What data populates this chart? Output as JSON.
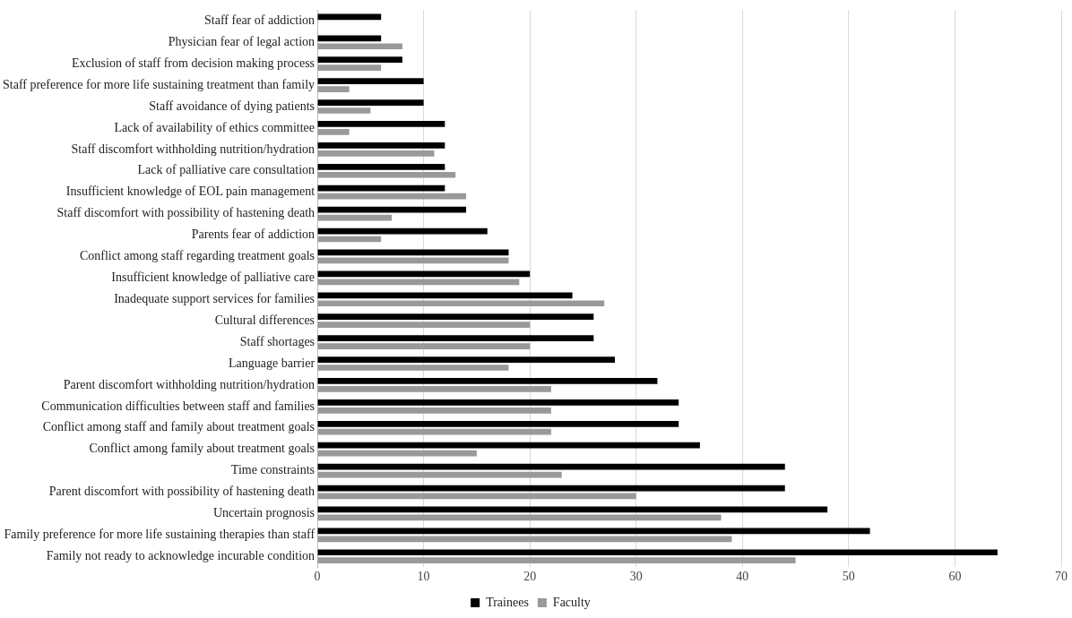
{
  "chart_data": {
    "type": "bar",
    "orientation": "horizontal",
    "categories": [
      "Staff fear of addiction",
      "Physician fear of legal action",
      "Exclusion of staff from decision making process",
      "Staff preference for more life sustaining treatment than family",
      "Staff avoidance of dying patients",
      "Lack of availability of ethics committee",
      "Staff discomfort withholding nutrition/hydration",
      "Lack of palliative care consultation",
      "Insufficient knowledge of EOL pain management",
      "Staff discomfort with possibility of hastening death",
      "Parents fear of addiction",
      "Conflict among staff regarding treatment goals",
      "Insufficient knowledge of palliative care",
      "Inadequate support services for families",
      "Cultural differences",
      "Staff shortages",
      "Language barrier",
      "Parent discomfort withholding nutrition/hydration",
      "Communication difficulties between staff and families",
      "Conflict among staff and family about treatment goals",
      "Conflict among family about treatment goals",
      "Time constraints",
      "Parent discomfort with possibility of hastening death",
      "Uncertain prognosis",
      "Family preference for more life sustaining therapies than staff",
      "Family not ready to acknowledge incurable condition"
    ],
    "series": [
      {
        "name": "Trainees",
        "color": "#000000",
        "values": [
          6,
          6,
          8,
          10,
          10,
          12,
          12,
          12,
          12,
          14,
          16,
          18,
          20,
          24,
          26,
          26,
          28,
          32,
          34,
          34,
          36,
          44,
          44,
          48,
          52,
          64
        ]
      },
      {
        "name": "Faculty",
        "color": "#999999",
        "values": [
          0,
          8,
          6,
          3,
          5,
          3,
          11,
          13,
          14,
          7,
          6,
          18,
          19,
          27,
          20,
          20,
          18,
          22,
          22,
          22,
          15,
          23,
          30,
          38,
          39,
          45
        ]
      }
    ],
    "xlim": [
      0,
      70
    ],
    "xticks": [
      0,
      10,
      20,
      30,
      40,
      50,
      60,
      70
    ],
    "grid": "x",
    "legend": "bottom"
  }
}
